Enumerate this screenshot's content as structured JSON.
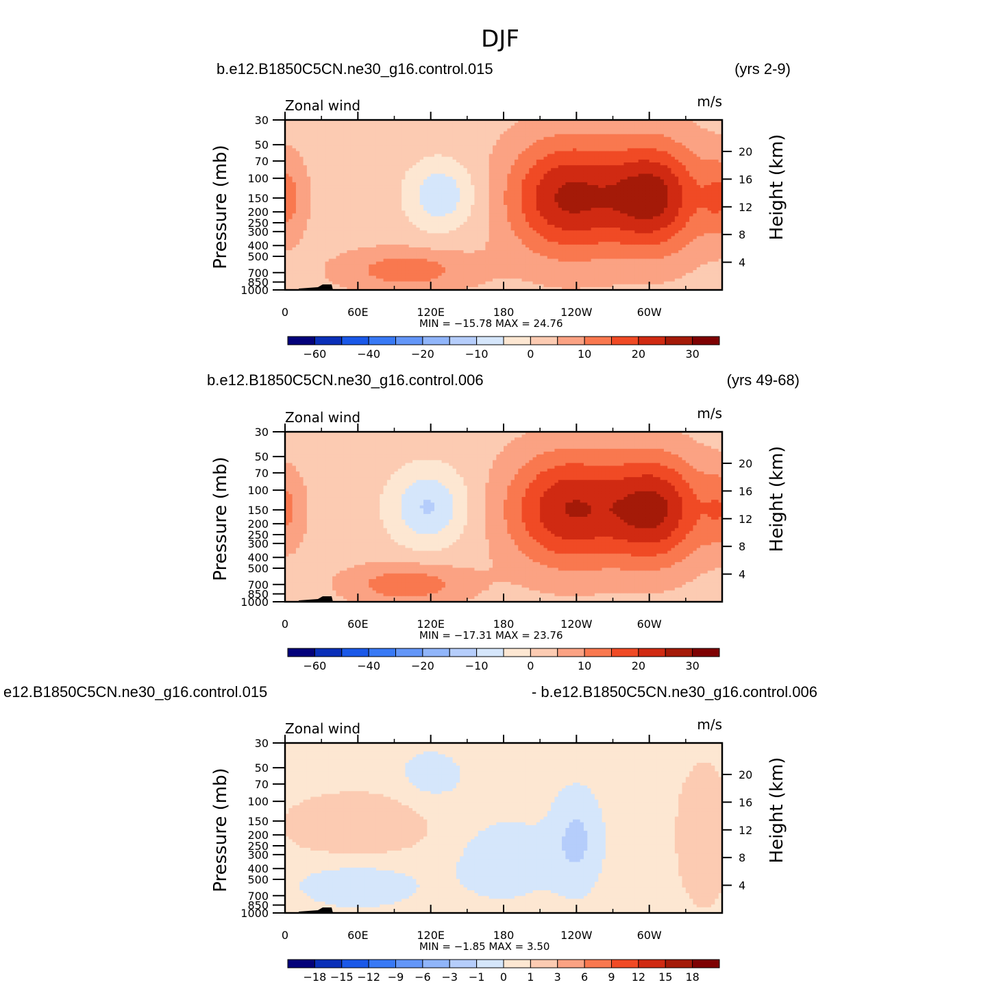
{
  "figure_title": "DJF",
  "colors": {
    "amp_palette": [
      "#03017a",
      "#0a2fb8",
      "#1a58e8",
      "#3879f5",
      "#6396f8",
      "#90b5fa",
      "#b5cdfb",
      "#d5e6fb",
      "#fde7d2",
      "#fccbb2",
      "#fba283",
      "#f9784f",
      "#f04a25",
      "#d02a12",
      "#a41a08",
      "#7e0102"
    ],
    "diff_palette": [
      "#03017a",
      "#0a2fb8",
      "#1a58e8",
      "#3879f5",
      "#6396f8",
      "#90b5fa",
      "#b5cdfb",
      "#d5e6fb",
      "#fde7d2",
      "#fccbb2",
      "#fba283",
      "#f9784f",
      "#f04a25",
      "#d02a12",
      "#a41a08",
      "#7e0102"
    ]
  },
  "chart_data": [
    {
      "type": "heatmap",
      "title_left": "b.e12.B1850C5CN.ne30_g16.control.015",
      "title_right": "(yrs 2-9)",
      "variable": "Zonal wind",
      "units": "m/s",
      "ylabel": "Pressure (mb)",
      "ylabel_right": "Height (km)",
      "x_ticks": [
        "0",
        "60E",
        "120E",
        "180",
        "120W",
        "60W"
      ],
      "y_ticks": [
        "30",
        "50",
        "70",
        "100",
        "150",
        "200",
        "250",
        "300",
        "400",
        "500",
        "700",
        "850",
        "1000"
      ],
      "height_ticks": [
        "20",
        "16",
        "12",
        "8",
        "4"
      ],
      "min_max_text": "MIN = −15.78   MAX =   24.76",
      "min": -15.78,
      "max": 24.76,
      "colorbar_labels": [
        "−60",
        "−40",
        "−20",
        "−10",
        "0",
        "10",
        "20",
        "30"
      ],
      "levels": [
        -70,
        -60,
        -50,
        -40,
        -30,
        -20,
        -15,
        -10,
        -5,
        0,
        5,
        10,
        15,
        20,
        25,
        30
      ],
      "features": [
        {
          "lon": 128,
          "logp": 4.95,
          "amp": -12,
          "sl": 20,
          "sp": 0.5
        },
        {
          "lon": 232,
          "logp": 5.0,
          "amp": 22.5,
          "sl": 34,
          "sp": 0.85
        },
        {
          "lon": 304,
          "logp": 4.98,
          "amp": 23.0,
          "sl": 28,
          "sp": 0.8
        },
        {
          "lon": 0,
          "logp": 5.0,
          "amp": 10,
          "sl": 12,
          "sp": 0.6
        },
        {
          "lon": 360,
          "logp": 5.0,
          "amp": 10,
          "sl": 12,
          "sp": 0.6
        },
        {
          "lon": 100,
          "logp": 6.5,
          "amp": 10,
          "sl": 38,
          "sp": 0.3
        }
      ],
      "background": 3
    },
    {
      "type": "heatmap",
      "title_left": "b.e12.B1850C5CN.ne30_g16.control.006",
      "title_right": "(yrs 49-68)",
      "variable": "Zonal wind",
      "units": "m/s",
      "ylabel": "Pressure (mb)",
      "ylabel_right": "Height (km)",
      "x_ticks": [
        "0",
        "60E",
        "120E",
        "180",
        "120W",
        "60W"
      ],
      "y_ticks": [
        "30",
        "50",
        "70",
        "100",
        "150",
        "200",
        "250",
        "300",
        "400",
        "500",
        "700",
        "850",
        "1000"
      ],
      "height_ticks": [
        "20",
        "16",
        "12",
        "8",
        "4"
      ],
      "min_max_text": "MIN = −17.31   MAX =   23.76",
      "min": -17.31,
      "max": 23.76,
      "colorbar_labels": [
        "−60",
        "−40",
        "−20",
        "−10",
        "0",
        "10",
        "20",
        "30"
      ],
      "levels": [
        -70,
        -60,
        -50,
        -40,
        -30,
        -20,
        -15,
        -10,
        -5,
        0,
        5,
        10,
        15,
        20,
        25,
        30
      ],
      "features": [
        {
          "lon": 118,
          "logp": 4.95,
          "amp": -13,
          "sl": 22,
          "sp": 0.55
        },
        {
          "lon": 233,
          "logp": 5.0,
          "amp": 22,
          "sl": 36,
          "sp": 0.85
        },
        {
          "lon": 306,
          "logp": 5.0,
          "amp": 22,
          "sl": 28,
          "sp": 0.8
        },
        {
          "lon": 0,
          "logp": 5.0,
          "amp": 9,
          "sl": 12,
          "sp": 0.6
        },
        {
          "lon": 360,
          "logp": 5.0,
          "amp": 9,
          "sl": 12,
          "sp": 0.6
        },
        {
          "lon": 100,
          "logp": 6.55,
          "amp": 11,
          "sl": 36,
          "sp": 0.3
        }
      ],
      "background": 2.5
    },
    {
      "type": "heatmap",
      "title_left": "e12.B1850C5CN.ne30_g16.control.015",
      "title_right": "- b.e12.B1850C5CN.ne30_g16.control.006",
      "variable": "Zonal wind",
      "units": "m/s",
      "ylabel": "Pressure (mb)",
      "ylabel_right": "Height (km)",
      "x_ticks": [
        "0",
        "60E",
        "120E",
        "180",
        "120W",
        "60W"
      ],
      "y_ticks": [
        "30",
        "50",
        "70",
        "100",
        "150",
        "200",
        "250",
        "300",
        "400",
        "500",
        "700",
        "850",
        "1000"
      ],
      "height_ticks": [
        "20",
        "16",
        "12",
        "8",
        "4"
      ],
      "min_max_text": "MIN =   −1.85   MAX =     3.50",
      "min": -1.85,
      "max": 3.5,
      "colorbar_labels": [
        "−18",
        "−15",
        "−12",
        "−9",
        "−6",
        "−3",
        "−1",
        "0",
        "1",
        "3",
        "6",
        "9",
        "12",
        "15",
        "18"
      ],
      "levels": [
        -21,
        -18,
        -15,
        -12,
        -9,
        -6,
        -3,
        -1,
        0,
        1,
        3,
        6,
        9,
        12,
        15,
        18
      ],
      "features": [
        {
          "lon": 60,
          "logp": 5.1,
          "amp": 1.6,
          "sl": 45,
          "sp": 0.5
        },
        {
          "lon": 345,
          "logp": 5.3,
          "amp": 2.4,
          "sl": 14,
          "sp": 0.9
        },
        {
          "lon": 240,
          "logp": 5.4,
          "amp": -1.6,
          "sl": 14,
          "sp": 0.7
        },
        {
          "lon": 180,
          "logp": 5.8,
          "amp": -1.0,
          "sl": 30,
          "sp": 0.6
        },
        {
          "lon": 60,
          "logp": 6.3,
          "amp": -1.1,
          "sl": 35,
          "sp": 0.35
        },
        {
          "lon": 120,
          "logp": 4.1,
          "amp": -0.9,
          "sl": 20,
          "sp": 0.4
        }
      ],
      "background": 0.4
    }
  ]
}
